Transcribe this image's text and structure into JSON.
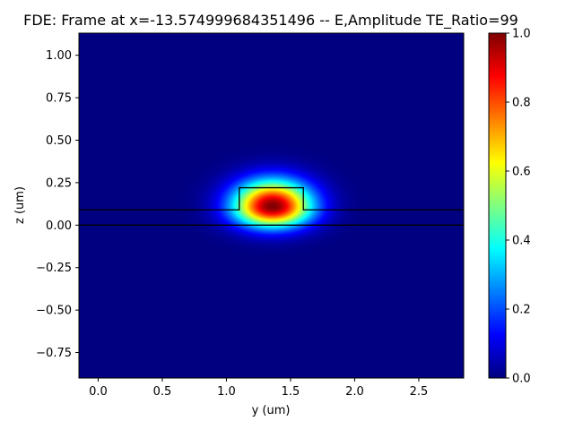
{
  "chart_data": {
    "type": "heatmap",
    "title": "FDE: Frame at x=-13.574999684351496 -- E,Amplitude TE_Ratio=99",
    "xlabel": "y (um)",
    "ylabel": "z (um)",
    "xlim": [
      -0.15,
      2.85
    ],
    "ylim": [
      -0.9,
      1.13
    ],
    "x_ticks": [
      0.0,
      0.5,
      1.0,
      1.5,
      2.0,
      2.5
    ],
    "x_tick_labels": [
      "0.0",
      "0.5",
      "1.0",
      "1.5",
      "2.0",
      "2.5"
    ],
    "y_ticks": [
      1.0,
      0.75,
      0.5,
      0.25,
      0.0,
      -0.25,
      -0.5,
      -0.75
    ],
    "y_tick_labels": [
      "1.00",
      "0.75",
      "0.50",
      "0.25",
      "0.00",
      "−0.25",
      "−0.50",
      "−0.75"
    ],
    "colormap": "jet",
    "colorbar": {
      "range": [
        0.0,
        1.0
      ],
      "ticks": [
        0.0,
        0.2,
        0.4,
        0.6,
        0.8,
        1.0
      ],
      "tick_labels": [
        "0.0",
        "0.2",
        "0.4",
        "0.6",
        "0.8",
        "1.0"
      ]
    },
    "field": {
      "peak_value": 1.0,
      "peak_y": 1.36,
      "peak_z": 0.11
    },
    "structure_outline": {
      "substrate_top_z": 0.0,
      "slab_top_z": 0.09,
      "rib_top_z": 0.22,
      "rib_left_y": 1.1,
      "rib_right_y": 1.6
    },
    "outline_color": "#000000"
  }
}
